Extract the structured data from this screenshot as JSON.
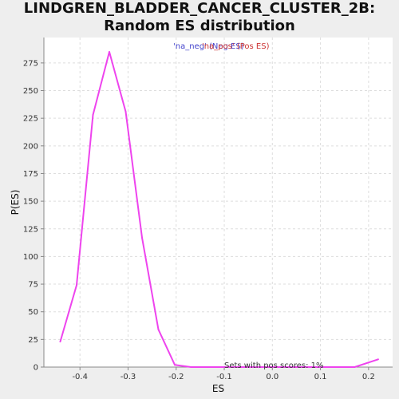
{
  "chart_data": {
    "type": "line",
    "title": "LINDGREN_BLADDER_CANCER_CLUSTER_2B: Random ES distribution",
    "xlabel": "ES",
    "ylabel": "P(ES)",
    "xlim": [
      -0.475,
      0.25
    ],
    "ylim": [
      0,
      298
    ],
    "xticks": [
      "-0.4",
      "-0.3",
      "-0.2",
      "-0.1",
      "0.0",
      "0.1",
      "0.2"
    ],
    "xtick_values": [
      -0.4,
      -0.3,
      -0.2,
      -0.1,
      0.0,
      0.1,
      0.2
    ],
    "yticks": [
      "0",
      "25",
      "50",
      "75",
      "100",
      "125",
      "150",
      "175",
      "200",
      "225",
      "250",
      "275"
    ],
    "ytick_values": [
      0,
      25,
      50,
      75,
      100,
      125,
      150,
      175,
      200,
      225,
      250,
      275
    ],
    "grid": true,
    "legend": [
      {
        "label": "'na_neg' (Neg ES)",
        "color": "#4444cc"
      },
      {
        "label": "'na_pos' (Pos ES)",
        "color": "#cc3333"
      }
    ],
    "legend_placement": "top-center",
    "series": [
      {
        "color": "#ee44ee",
        "x": [
          -0.441,
          -0.407,
          -0.373,
          -0.339,
          -0.305,
          -0.271,
          -0.237,
          -0.203,
          -0.169,
          -0.135,
          -0.101,
          -0.067,
          -0.033,
          0.001,
          0.035,
          0.069,
          0.103,
          0.137,
          0.171,
          0.22
        ],
        "y": [
          23,
          74,
          228,
          285,
          231,
          117,
          34,
          2,
          0,
          0,
          0,
          0,
          0,
          0,
          0,
          0,
          0,
          0,
          0,
          7
        ]
      }
    ],
    "annotation": "Sets with pos scores: 1%"
  }
}
